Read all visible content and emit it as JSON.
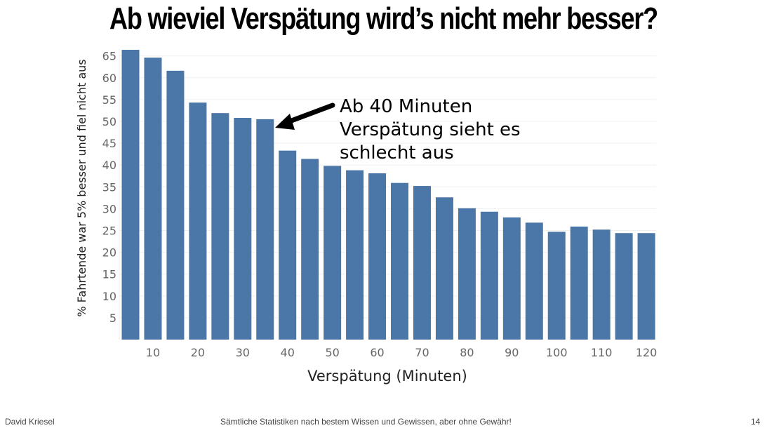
{
  "slide": {
    "title": "Ab wieviel Verspätung wird’s nicht mehr besser?",
    "footer_left": "David Kriesel",
    "footer_center": "Sämtliche Statistiken nach bestem Wissen und Gewissen, aber ohne Gewähr!",
    "page_number": "14"
  },
  "chart_data": {
    "type": "bar",
    "xlabel": "Verspätung (Minuten)",
    "ylabel": "% Fahrtende war 5% besser und fiel nicht aus",
    "x": [
      5,
      10,
      15,
      20,
      25,
      30,
      35,
      40,
      45,
      50,
      55,
      60,
      65,
      70,
      75,
      80,
      85,
      90,
      95,
      100,
      105,
      110,
      115,
      120
    ],
    "values": [
      66.4,
      64.6,
      61.6,
      54.3,
      51.9,
      50.8,
      50.5,
      43.3,
      41.4,
      39.8,
      38.8,
      38.1,
      35.9,
      35.2,
      32.6,
      30.1,
      29.3,
      28.0,
      26.8,
      24.7,
      25.9,
      25.2,
      24.4,
      24.4
    ],
    "x_ticks": [
      10,
      20,
      30,
      40,
      50,
      60,
      70,
      80,
      90,
      100,
      110,
      120
    ],
    "y_ticks": [
      5,
      10,
      15,
      20,
      25,
      30,
      35,
      40,
      45,
      50,
      55,
      60,
      65
    ],
    "ylim": [
      0,
      67
    ],
    "grid": true,
    "bar_color": "#4a76a8",
    "annotation": {
      "lines": [
        "Ab 40 Minuten",
        "Verspätung sieht es",
        "schlecht aus"
      ],
      "points_to_x": 35
    }
  }
}
